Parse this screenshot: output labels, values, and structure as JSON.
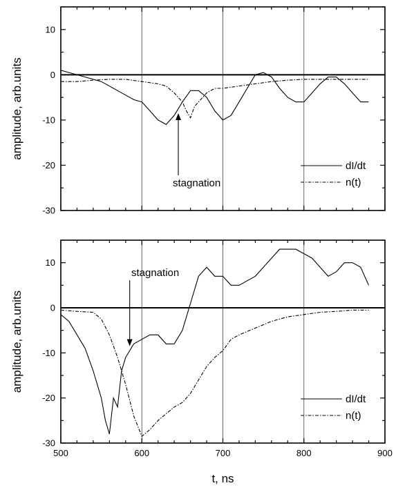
{
  "chart_data": [
    {
      "type": "line",
      "title": "",
      "xlabel": "",
      "ylabel": "amplitude, arb.units",
      "xlim": [
        500,
        880
      ],
      "ylim": [
        -30,
        15
      ],
      "yticks": [
        -30,
        -20,
        -10,
        0,
        10
      ],
      "xticks": [],
      "grid_x": [
        600,
        700,
        800
      ],
      "zero_line": true,
      "annotation": {
        "text": "stagnation",
        "arrow_x": 645,
        "arrow_y": -8.5
      },
      "legend": {
        "placement": "right-lower"
      },
      "series": [
        {
          "name": "dI/dt",
          "style": "solid",
          "x": [
            500,
            510,
            520,
            530,
            540,
            550,
            560,
            570,
            580,
            590,
            600,
            610,
            620,
            630,
            640,
            650,
            660,
            670,
            680,
            690,
            700,
            710,
            720,
            730,
            740,
            750,
            760,
            770,
            780,
            790,
            800,
            810,
            820,
            830,
            840,
            850,
            860,
            870,
            880
          ],
          "y": [
            1,
            0.5,
            0,
            -0.5,
            -1,
            -1.5,
            -2.5,
            -3.5,
            -4.5,
            -5.5,
            -6,
            -8,
            -10,
            -11,
            -9,
            -6,
            -3.5,
            -3.5,
            -5,
            -8,
            -10,
            -9,
            -6,
            -3,
            0,
            0.5,
            -0.5,
            -3,
            -5,
            -6,
            -6,
            -4,
            -2,
            -0.5,
            -0.5,
            -2,
            -4,
            -6,
            -6
          ]
        },
        {
          "name": "n(t)",
          "style": "dashdot",
          "x": [
            500,
            520,
            540,
            560,
            580,
            600,
            620,
            630,
            640,
            650,
            655,
            660,
            665,
            670,
            680,
            690,
            700,
            720,
            740,
            760,
            780,
            800,
            820,
            840,
            860,
            880
          ],
          "y": [
            -1.5,
            -1.5,
            -1.2,
            -1,
            -1,
            -1.5,
            -2,
            -2.5,
            -4,
            -6,
            -8,
            -9.5,
            -7,
            -6,
            -4,
            -3,
            -3,
            -2.5,
            -2,
            -1.5,
            -1.2,
            -1,
            -1,
            -1,
            -1,
            -1
          ]
        }
      ]
    },
    {
      "type": "line",
      "title": "",
      "xlabel": "t, ns",
      "ylabel": "amplitude, arb.units",
      "xlim": [
        500,
        900
      ],
      "ylim": [
        -30,
        15
      ],
      "yticks": [
        -30,
        -20,
        -10,
        0,
        10
      ],
      "xticks": [
        500,
        600,
        700,
        800,
        900
      ],
      "grid_x": [
        600,
        700,
        800
      ],
      "zero_line": true,
      "annotation": {
        "text": "stagnation",
        "arrow_x": 585,
        "arrow_y": -8.5
      },
      "legend": {
        "placement": "right-lower"
      },
      "series": [
        {
          "name": "dI/dt",
          "style": "solid",
          "x": [
            500,
            510,
            520,
            530,
            540,
            550,
            555,
            560,
            565,
            570,
            575,
            580,
            590,
            600,
            610,
            620,
            630,
            640,
            650,
            660,
            670,
            680,
            690,
            700,
            710,
            720,
            730,
            740,
            750,
            760,
            770,
            780,
            790,
            800,
            810,
            820,
            830,
            840,
            850,
            860,
            870,
            880
          ],
          "y": [
            -1.5,
            -3,
            -6,
            -9,
            -14,
            -20,
            -25,
            -28,
            -20,
            -22,
            -14,
            -11,
            -8,
            -7,
            -6,
            -6,
            -8,
            -8,
            -5,
            1,
            7,
            9,
            7,
            7,
            5,
            5,
            6,
            7,
            9,
            11,
            13,
            13,
            13,
            12,
            11,
            9,
            7,
            8,
            10,
            10,
            9,
            5
          ]
        },
        {
          "name": "n(t)",
          "style": "dashdot",
          "x": [
            500,
            520,
            540,
            550,
            560,
            570,
            580,
            590,
            600,
            610,
            620,
            630,
            640,
            650,
            660,
            670,
            680,
            690,
            700,
            710,
            720,
            740,
            760,
            780,
            800,
            820,
            840,
            860,
            880
          ],
          "y": [
            -0.5,
            -0.8,
            -1,
            -2.5,
            -6,
            -11,
            -17,
            -24,
            -28.5,
            -27,
            -25,
            -23.5,
            -22,
            -21,
            -19,
            -16,
            -13,
            -11,
            -9.5,
            -7,
            -6,
            -4.5,
            -3,
            -2,
            -1.5,
            -1,
            -0.8,
            -0.5,
            -0.5
          ]
        }
      ]
    }
  ]
}
